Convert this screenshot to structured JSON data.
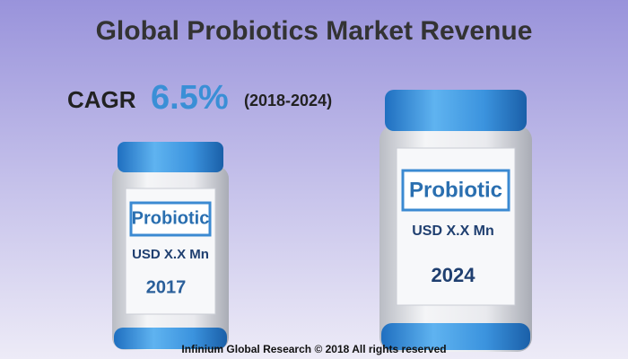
{
  "header": {
    "title": "Global Probiotics Market Revenue"
  },
  "cagr": {
    "label": "CAGR",
    "rate": "6.5%",
    "period": "(2018-2024)"
  },
  "jars": [
    {
      "brand": "Probiotic",
      "revenue": "USD X.X Mn",
      "year": "2017"
    },
    {
      "brand": "Probiotic",
      "revenue": "USD X.X Mn",
      "year": "2024"
    }
  ],
  "footer": {
    "credit": "Infinium Global Research © 2018 All rights reserved"
  }
}
